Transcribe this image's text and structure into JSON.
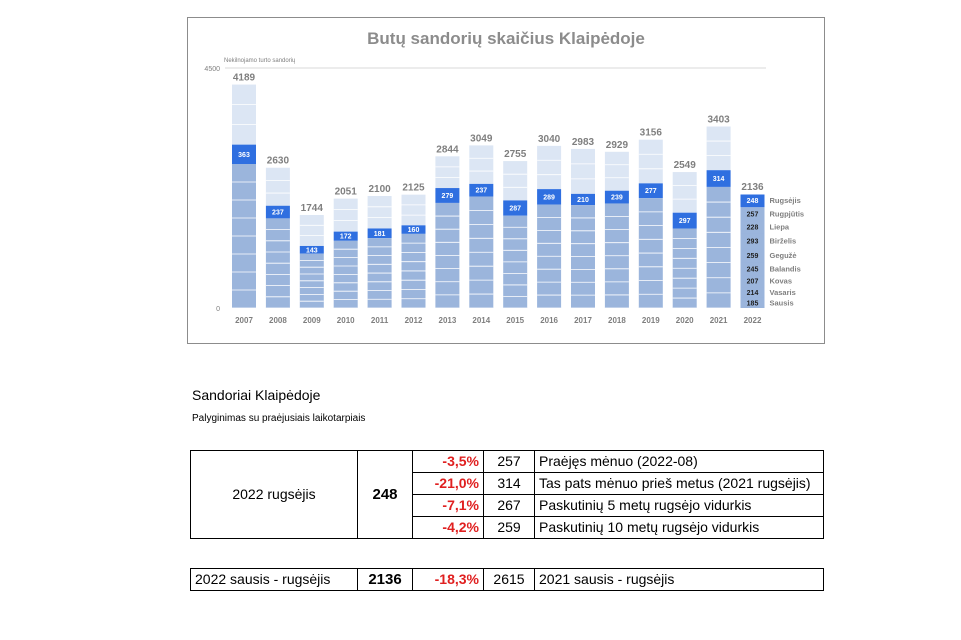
{
  "chart_data": {
    "type": "bar",
    "title": "Butų sandorių skaičius Klaipėdoje",
    "ylabel": "Nekilnojamo turto sandorių",
    "ylim": [
      0,
      4500
    ],
    "y_ticks": [
      "4500",
      "0"
    ],
    "categories": [
      "2007",
      "2008",
      "2009",
      "2010",
      "2011",
      "2012",
      "2013",
      "2014",
      "2015",
      "2016",
      "2017",
      "2018",
      "2019",
      "2020",
      "2021",
      "2022"
    ],
    "totals": [
      4189,
      2630,
      1744,
      2051,
      2100,
      2125,
      2844,
      3049,
      2755,
      3040,
      2983,
      2929,
      3156,
      2549,
      3403,
      2136
    ],
    "total_labels": [
      "4189",
      "2630",
      "1744",
      "2051",
      "2100",
      "2125",
      "2844",
      "3049",
      "2755",
      "3040",
      "2983",
      "2929",
      "3156",
      "2549",
      "3403",
      "2136"
    ],
    "september_values": [
      363,
      237,
      143,
      172,
      181,
      160,
      279,
      237,
      287,
      289,
      210,
      239,
      277,
      297,
      314,
      248
    ],
    "september_labels": [
      "363",
      "237",
      "143",
      "172",
      "181",
      "160",
      "279",
      "237",
      "287",
      "289",
      "210",
      "239",
      "277",
      "297",
      "314",
      "248"
    ],
    "jan_aug_estimate": [
      2700,
      1680,
      1020,
      1260,
      1310,
      1390,
      1970,
      2090,
      1730,
      1940,
      1930,
      1960,
      2060,
      1490,
      2270,
      1888
    ],
    "months_2022": [
      {
        "name": "Sausis",
        "value": 185,
        "label": "185"
      },
      {
        "name": "Vasaris",
        "value": 214,
        "label": "214"
      },
      {
        "name": "Kovas",
        "value": 207,
        "label": "207"
      },
      {
        "name": "Balandis",
        "value": 245,
        "label": "245"
      },
      {
        "name": "Gegužė",
        "value": 259,
        "label": "259"
      },
      {
        "name": "Birželis",
        "value": 293,
        "label": "293"
      },
      {
        "name": "Liepa",
        "value": 228,
        "label": "228"
      },
      {
        "name": "Rugpjūtis",
        "value": 257,
        "label": "257"
      },
      {
        "name": "Rugsėjis",
        "value": 248,
        "label": "248"
      }
    ],
    "colors": {
      "lower": "#9bb5dc",
      "september": "#2f6fe0",
      "upper": "#dce6f4",
      "stripe": "#ffffff",
      "label": "#7f7f7f",
      "title": "#8c8c8c"
    }
  },
  "section": {
    "title": "Sandoriai Klaipėdoje",
    "subtitle": "Palyginimas su praėjusiais laikotarpiais"
  },
  "table1": {
    "period": "2022 rugsėjis",
    "value": "248",
    "rows": [
      {
        "change": "-3,5%",
        "ref": "257",
        "desc": "Praėjęs mėnuo (2022-08)"
      },
      {
        "change": "-21,0%",
        "ref": "314",
        "desc": "Tas pats mėnuo prieš metus (2021 rugsėjis)"
      },
      {
        "change": "-7,1%",
        "ref": "267",
        "desc": "Paskutinių 5 metų rugsėjo vidurkis"
      },
      {
        "change": "-4,2%",
        "ref": "259",
        "desc": "Paskutinių 10 metų rugsėjo vidurkis"
      }
    ]
  },
  "table2": {
    "period": "2022 sausis - rugsėjis",
    "value": "2136",
    "change": "-18,3%",
    "ref": "2615",
    "desc": "2021 sausis - rugsėjis"
  }
}
